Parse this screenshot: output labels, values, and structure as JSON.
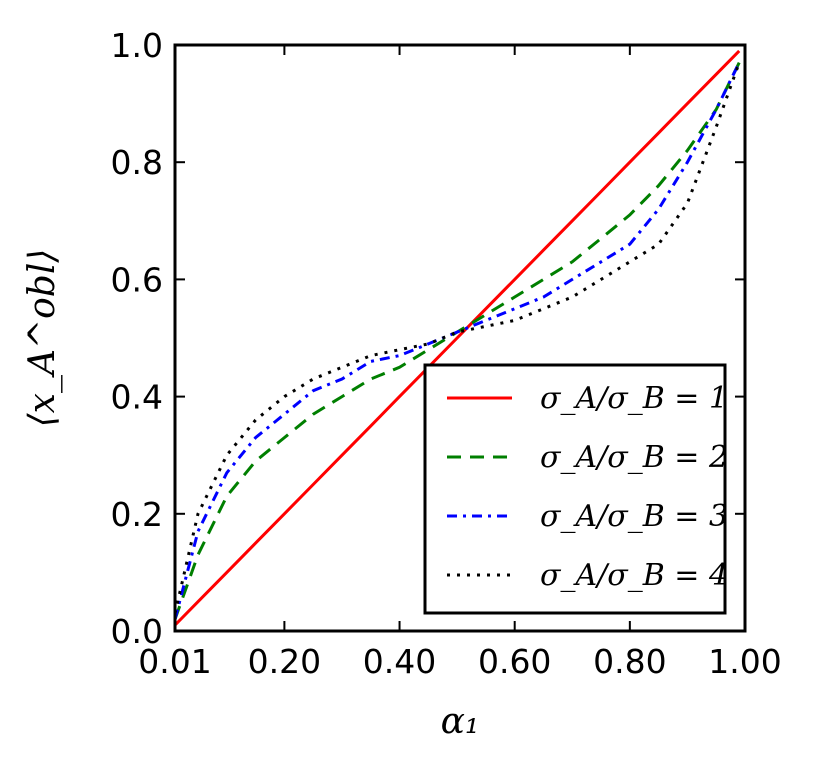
{
  "chart_data": {
    "type": "line",
    "xlabel": "α₁",
    "ylabel": "⟨x_A^obl⟩",
    "xlim": [
      0.01,
      1.0
    ],
    "ylim": [
      0.0,
      1.0
    ],
    "x_ticks": [
      0.01,
      0.2,
      0.4,
      0.6,
      0.8,
      1.0
    ],
    "x_tick_labels": [
      "0.01",
      "0.20",
      "0.40",
      "0.60",
      "0.80",
      "1.00"
    ],
    "y_ticks": [
      0.0,
      0.2,
      0.4,
      0.6,
      0.8,
      1.0
    ],
    "y_tick_labels": [
      "0.0",
      "0.2",
      "0.4",
      "0.6",
      "0.8",
      "1.0"
    ],
    "grid": false,
    "legend_position": "lower-right",
    "x": [
      0.01,
      0.05,
      0.1,
      0.15,
      0.2,
      0.25,
      0.3,
      0.35,
      0.4,
      0.45,
      0.5,
      0.55,
      0.6,
      0.65,
      0.7,
      0.75,
      0.8,
      0.85,
      0.9,
      0.95,
      0.99
    ],
    "series": [
      {
        "name": "σ_A/σ_B = 1",
        "color": "#ff0000",
        "dash": "solid",
        "values": [
          0.01,
          0.05,
          0.1,
          0.15,
          0.2,
          0.25,
          0.3,
          0.35,
          0.4,
          0.45,
          0.5,
          0.55,
          0.6,
          0.65,
          0.7,
          0.75,
          0.8,
          0.85,
          0.9,
          0.95,
          0.99
        ]
      },
      {
        "name": "σ_A/σ_B = 2",
        "color": "#007f00",
        "dash": "dashed",
        "values": [
          0.02,
          0.13,
          0.23,
          0.29,
          0.33,
          0.37,
          0.4,
          0.43,
          0.45,
          0.48,
          0.51,
          0.54,
          0.57,
          0.6,
          0.63,
          0.67,
          0.71,
          0.76,
          0.82,
          0.89,
          0.97
        ]
      },
      {
        "name": "σ_A/σ_B = 3",
        "color": "#0000ff",
        "dash": "dashdot",
        "values": [
          0.02,
          0.17,
          0.27,
          0.33,
          0.37,
          0.41,
          0.43,
          0.46,
          0.47,
          0.49,
          0.51,
          0.53,
          0.55,
          0.57,
          0.6,
          0.63,
          0.66,
          0.72,
          0.8,
          0.89,
          0.97
        ]
      },
      {
        "name": "σ_A/σ_B = 4",
        "color": "#000000",
        "dash": "dotted",
        "values": [
          0.03,
          0.2,
          0.3,
          0.36,
          0.4,
          0.43,
          0.45,
          0.47,
          0.48,
          0.49,
          0.51,
          0.52,
          0.53,
          0.55,
          0.57,
          0.6,
          0.63,
          0.66,
          0.73,
          0.86,
          0.97
        ]
      }
    ]
  }
}
